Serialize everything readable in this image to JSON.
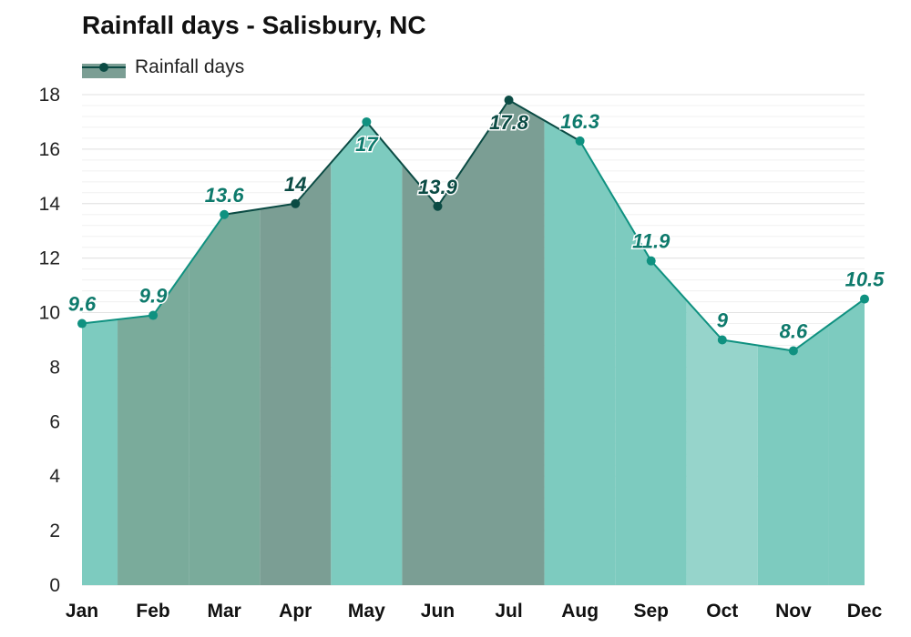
{
  "chart_data": {
    "type": "area",
    "title": "Rainfall days - Salisbury, NC",
    "xlabel": "",
    "ylabel": "",
    "categories": [
      "Jan",
      "Feb",
      "Mar",
      "Apr",
      "May",
      "Jun",
      "Jul",
      "Aug",
      "Sep",
      "Oct",
      "Nov",
      "Dec"
    ],
    "series": [
      {
        "name": "Rainfall days",
        "values": [
          9.6,
          9.9,
          13.6,
          14,
          17,
          13.9,
          17.8,
          16.3,
          11.9,
          9,
          8.6,
          10.5
        ]
      }
    ],
    "data_labels": [
      "9.6",
      "9.9",
      "13.6",
      "14",
      "17",
      "13.9",
      "17.8",
      "16.3",
      "11.9",
      "9",
      "8.6",
      "10.5"
    ],
    "ylim": [
      0,
      18
    ],
    "yticks": [
      0,
      2,
      4,
      6,
      8,
      10,
      12,
      14,
      16,
      18
    ],
    "grid": true,
    "legend_position": "top-left",
    "colors": {
      "light": "#96d4cb",
      "medium": "#7dcbbf",
      "dark": "#7aab9b",
      "darker": "#7b9e94",
      "line_light": "#0f9180",
      "line_dark": "#0b4b44",
      "label_light": "#0e7a6c",
      "label_dark": "#0b4b44"
    },
    "month_shade": [
      "medium",
      "dark",
      "dark",
      "darker",
      "medium",
      "darker",
      "darker",
      "medium",
      "medium",
      "light",
      "medium",
      "medium"
    ]
  }
}
